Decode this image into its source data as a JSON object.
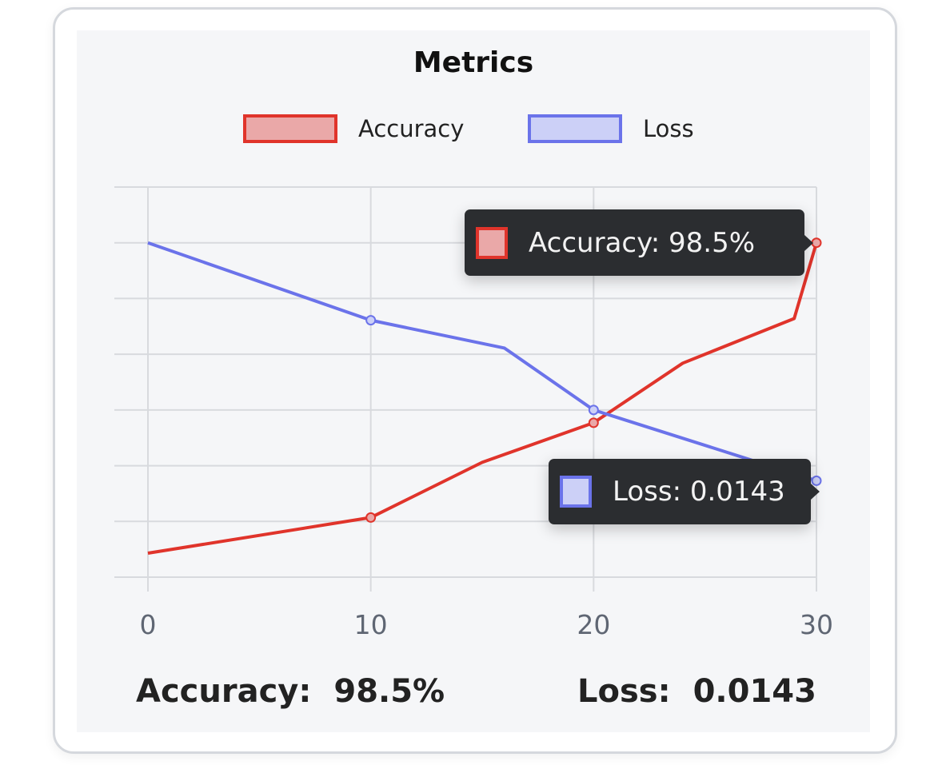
{
  "card": {
    "title": "Metrics"
  },
  "chart_data": {
    "type": "line",
    "title": "Metrics",
    "xlabel": "",
    "ylabel": "",
    "x_ticks": [
      0,
      10,
      20,
      30
    ],
    "x_tick_labels": [
      "0",
      "10",
      "20",
      "30"
    ],
    "xlim": [
      0,
      30
    ],
    "ylim": [
      0,
      7
    ],
    "y_grid_lines": [
      0,
      1,
      2,
      3,
      4,
      5,
      6,
      7
    ],
    "grid": true,
    "legend": "top-center",
    "series": [
      {
        "name": "Accuracy",
        "color": "#e0342b",
        "fill": "#eaa8a8",
        "x": [
          0,
          10,
          15,
          20,
          24,
          29,
          30
        ],
        "y": [
          0.43,
          1.07,
          2.06,
          2.77,
          3.84,
          4.64,
          6.0
        ],
        "marked_x": [
          10,
          20,
          30
        ]
      },
      {
        "name": "Loss",
        "color": "#6b73ea",
        "fill": "#ccd0f7",
        "x": [
          0,
          10,
          16,
          20,
          30
        ],
        "y": [
          6.0,
          4.61,
          4.11,
          3.0,
          1.73
        ],
        "marked_x": [
          10,
          20,
          30
        ]
      }
    ]
  },
  "tooltips": {
    "accuracy": "Accuracy: 98.5%",
    "loss": "Loss: 0.0143"
  },
  "summary": {
    "accuracy_label": "Accuracy:",
    "accuracy_value": "98.5%",
    "loss_label": "Loss:",
    "loss_value": "0.0143"
  }
}
